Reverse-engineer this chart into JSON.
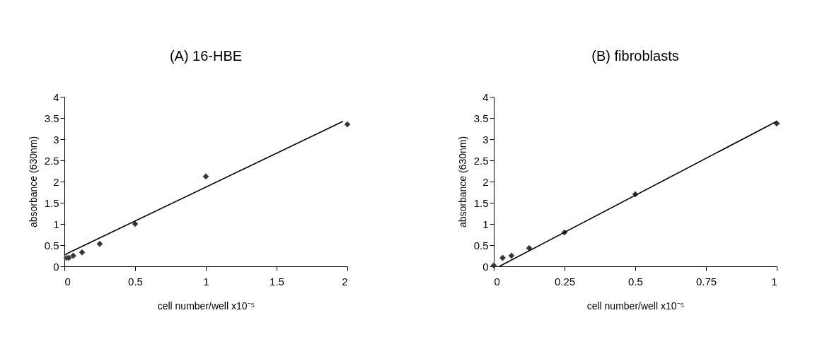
{
  "chart_data": [
    {
      "type": "scatter",
      "title": "(A) 16-HBE",
      "xlabel": "cell number/well x10⁻⁵",
      "ylabel": "absorbance (630nm)",
      "xlim": [
        0,
        2
      ],
      "xticks": [
        0,
        0.5,
        1,
        1.5,
        2
      ],
      "ylim": [
        0,
        4
      ],
      "yticks": [
        0,
        0.5,
        1,
        1.5,
        2,
        2.5,
        3,
        3.5,
        4
      ],
      "grid": false,
      "series": [
        {
          "marker": "diamond",
          "color": "#333333",
          "x": [
            0.0156,
            0.03125,
            0.0625,
            0.125,
            0.25,
            0.5,
            1,
            2
          ],
          "values": [
            0.2,
            0.2,
            0.25,
            0.33,
            0.53,
            1.0,
            2.12,
            3.35
          ]
        },
        {
          "type": "line",
          "marker": "none",
          "line_style": "solid",
          "color": "#000000",
          "x": [
            0,
            1.97
          ],
          "values": [
            0.27,
            3.42
          ]
        }
      ]
    },
    {
      "type": "scatter",
      "title": "(B) fibroblasts",
      "xlabel": "cell number/well x10⁻⁵",
      "ylabel": "absorbance (630nm)",
      "xlim": [
        0,
        1
      ],
      "xticks": [
        0,
        0.25,
        0.5,
        0.75,
        1
      ],
      "ylim": [
        0,
        4
      ],
      "yticks": [
        0,
        0.5,
        1,
        1.5,
        2,
        2.5,
        3,
        3.5,
        4
      ],
      "grid": false,
      "series": [
        {
          "marker": "diamond",
          "color": "#333333",
          "x": [
            0,
            0.03125,
            0.0625,
            0.125,
            0.25,
            0.5,
            1
          ],
          "values": [
            0.02,
            0.2,
            0.25,
            0.43,
            0.8,
            1.7,
            3.37
          ]
        },
        {
          "type": "line",
          "marker": "none",
          "line_style": "solid",
          "color": "#000000",
          "x": [
            0.02,
            1
          ],
          "values": [
            0,
            3.42
          ]
        }
      ]
    }
  ]
}
